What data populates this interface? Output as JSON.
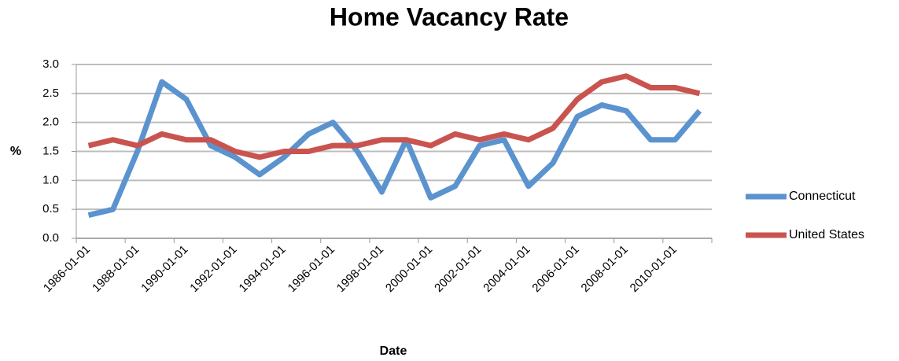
{
  "chart_data": {
    "type": "line",
    "title": "Home Vacancy Rate",
    "xlabel": "Date",
    "ylabel": "%",
    "categories": [
      "1986-01-01",
      null,
      "1988-01-01",
      null,
      "1990-01-01",
      null,
      "1992-01-01",
      null,
      "1994-01-01",
      null,
      "1996-01-01",
      null,
      "1998-01-01",
      null,
      "2000-01-01",
      null,
      "2002-01-01",
      null,
      "2004-01-01",
      null,
      "2006-01-01",
      null,
      "2008-01-01",
      null,
      "2010-01-01",
      null
    ],
    "series": [
      {
        "name": "Connecticut",
        "color": "#5b93cf",
        "values": [
          0.4,
          0.5,
          1.5,
          2.7,
          2.4,
          1.6,
          1.4,
          1.1,
          1.4,
          1.8,
          2.0,
          1.5,
          0.8,
          1.7,
          0.7,
          0.9,
          1.6,
          1.7,
          0.9,
          1.3,
          2.1,
          2.3,
          2.2,
          1.7,
          1.7,
          2.2
        ]
      },
      {
        "name": "United States",
        "color": "#c9544f",
        "values": [
          1.6,
          1.7,
          1.6,
          1.8,
          1.7,
          1.7,
          1.5,
          1.4,
          1.5,
          1.5,
          1.6,
          1.6,
          1.7,
          1.7,
          1.6,
          1.8,
          1.7,
          1.8,
          1.7,
          1.9,
          2.4,
          2.7,
          2.8,
          2.6,
          2.6,
          2.5
        ]
      }
    ],
    "ylim": [
      0,
      3
    ],
    "yticks": [
      {
        "value": 0,
        "label": "0.0"
      },
      0.5,
      {
        "value": 1,
        "label": "1.0"
      },
      1.5,
      {
        "value": 2,
        "label": "2.0"
      },
      2.5,
      {
        "value": 3,
        "label": "3.0"
      }
    ],
    "grid": true,
    "legend": "right"
  }
}
